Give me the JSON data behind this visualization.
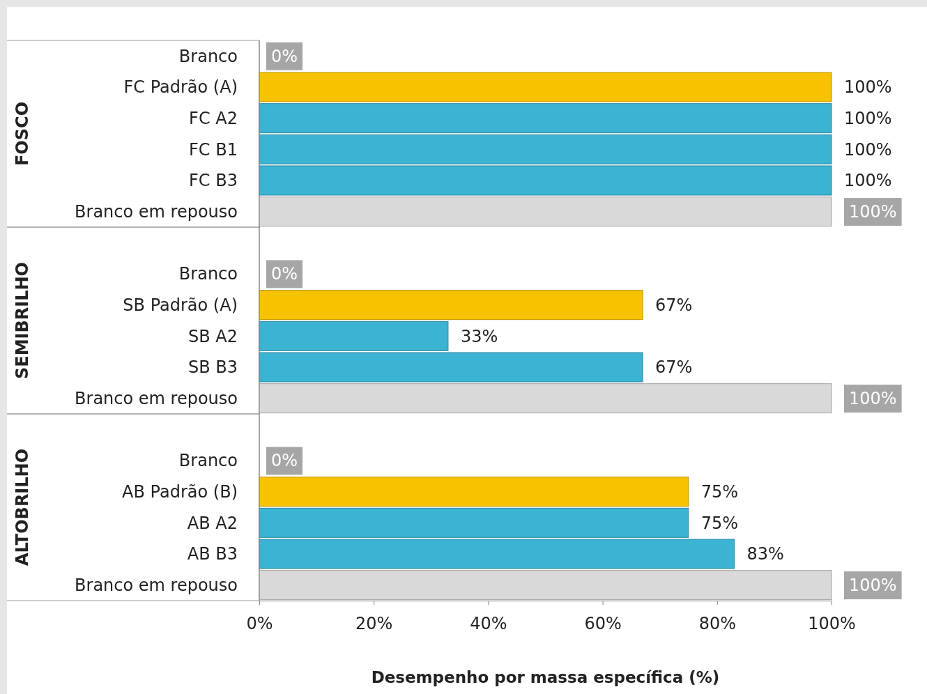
{
  "chart_data": [
    {
      "type": "bar",
      "orientation": "horizontal",
      "ylabel": "FOSCO",
      "categories": [
        "Branco",
        "FC Padrão (A)",
        "FC A2",
        "FC B1",
        "FC B3",
        "Branco em repouso"
      ],
      "values": [
        0,
        100,
        100,
        100,
        100,
        100
      ],
      "colors": [
        "#d9d9d9",
        "#f7c300",
        "#3bb3d3",
        "#3bb3d3",
        "#3bb3d3",
        "#d9d9d9"
      ],
      "value_labels": [
        "0%",
        "100%",
        "100%",
        "100%",
        "100%",
        "100%"
      ],
      "xlim": [
        0,
        100
      ],
      "tick_labels": "y"
    },
    {
      "type": "bar",
      "orientation": "horizontal",
      "ylabel": "SEMIBRILHO",
      "categories": [
        "Branco",
        "SB Padrão (A)",
        "SB A2",
        "SB B3",
        "Branco em repouso"
      ],
      "values": [
        0,
        67,
        33,
        67,
        100
      ],
      "colors": [
        "#d9d9d9",
        "#f7c300",
        "#3bb3d3",
        "#3bb3d3",
        "#d9d9d9"
      ],
      "value_labels": [
        "0%",
        "67%",
        "33%",
        "67%",
        "100%"
      ],
      "xlim": [
        0,
        100
      ],
      "tick_labels": "y"
    },
    {
      "type": "bar",
      "orientation": "horizontal",
      "ylabel": "ALTOBRILHO",
      "xlabel": "Desempenho por massa específica (%)",
      "categories": [
        "Branco",
        "AB Padrão (B)",
        "AB A2",
        "AB B3",
        "Branco em repouso"
      ],
      "values": [
        0,
        75,
        75,
        83,
        100
      ],
      "colors": [
        "#d9d9d9",
        "#f7c300",
        "#3bb3d3",
        "#3bb3d3",
        "#d9d9d9"
      ],
      "value_labels": [
        "0%",
        "75%",
        "75%",
        "83%",
        "100%"
      ],
      "xlim": [
        0,
        100
      ],
      "xticks": [
        {
          "value": 0,
          "label": "0%"
        },
        {
          "value": 20,
          "label": "20%"
        },
        {
          "value": 40,
          "label": "40%"
        },
        {
          "value": 60,
          "label": "60%"
        },
        {
          "value": 80,
          "label": "80%"
        },
        {
          "value": 100,
          "label": "100%"
        }
      ]
    }
  ]
}
